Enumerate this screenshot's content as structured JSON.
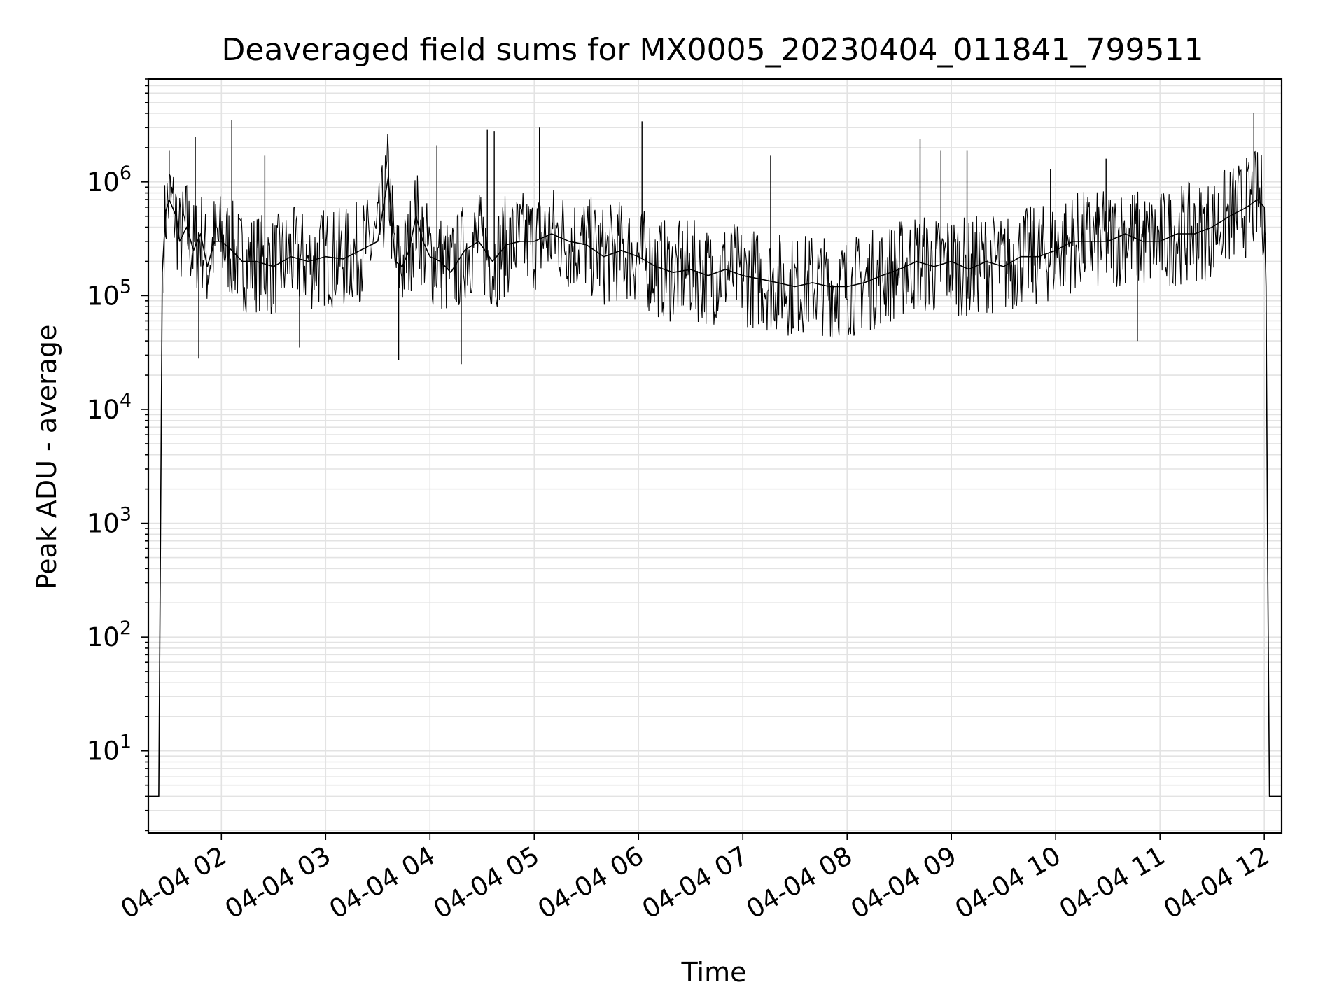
{
  "chart_data": {
    "type": "line",
    "title": "Deaveraged field sums for MX0005_20230404_011841_799511",
    "xlabel": "Time",
    "ylabel": "Peak ADU - average",
    "yscale": "log",
    "ylim": [
      1.9,
      8000000
    ],
    "xlim": [
      "04-04 01:18",
      "04-04 12:10"
    ],
    "grid": true,
    "line_color": "#000000",
    "x_ticks": [
      "04-04 02",
      "04-04 03",
      "04-04 04",
      "04-04 05",
      "04-04 06",
      "04-04 07",
      "04-04 08",
      "04-04 09",
      "04-04 10",
      "04-04 11",
      "04-04 12"
    ],
    "y_ticks": [
      {
        "value": 10,
        "base": "10",
        "exp": "1"
      },
      {
        "value": 100,
        "base": "10",
        "exp": "2"
      },
      {
        "value": 1000,
        "base": "10",
        "exp": "3"
      },
      {
        "value": 10000,
        "base": "10",
        "exp": "4"
      },
      {
        "value": 100000,
        "base": "10",
        "exp": "5"
      },
      {
        "value": 1000000,
        "base": "10",
        "exp": "6"
      }
    ],
    "series": [
      {
        "x": [
          "04-04 01:18",
          "04-04 01:24",
          "04-04 01:25",
          "04-04 01:26",
          "04-04 01:28",
          "04-04 01:30",
          "04-04 01:34",
          "04-04 01:36",
          "04-04 01:40",
          "04-04 01:44",
          "04-04 01:48",
          "04-04 01:52",
          "04-04 01:56",
          "04-04 02:00",
          "04-04 02:06",
          "04-04 02:12",
          "04-04 02:20",
          "04-04 02:30",
          "04-04 02:40",
          "04-04 02:50",
          "04-04 03:00",
          "04-04 03:10",
          "04-04 03:20",
          "04-04 03:30",
          "04-04 03:36",
          "04-04 03:40",
          "04-04 03:44",
          "04-04 03:48",
          "04-04 03:52",
          "04-04 03:56",
          "04-04 04:00",
          "04-04 04:06",
          "04-04 04:12",
          "04-04 04:20",
          "04-04 04:28",
          "04-04 04:36",
          "04-04 04:44",
          "04-04 04:52",
          "04-04 05:00",
          "04-04 05:10",
          "04-04 05:20",
          "04-04 05:30",
          "04-04 05:40",
          "04-04 05:50",
          "04-04 06:00",
          "04-04 06:10",
          "04-04 06:20",
          "04-04 06:30",
          "04-04 06:40",
          "04-04 06:50",
          "04-04 07:00",
          "04-04 07:10",
          "04-04 07:20",
          "04-04 07:30",
          "04-04 07:40",
          "04-04 07:50",
          "04-04 08:00",
          "04-04 08:10",
          "04-04 08:20",
          "04-04 08:30",
          "04-04 08:40",
          "04-04 08:50",
          "04-04 09:00",
          "04-04 09:10",
          "04-04 09:20",
          "04-04 09:30",
          "04-04 09:40",
          "04-04 09:50",
          "04-04 10:00",
          "04-04 10:10",
          "04-04 10:20",
          "04-04 10:30",
          "04-04 10:40",
          "04-04 10:50",
          "04-04 11:00",
          "04-04 11:10",
          "04-04 11:20",
          "04-04 11:30",
          "04-04 11:40",
          "04-04 11:50",
          "04-04 11:56",
          "04-04 12:00",
          "04-04 12:01",
          "04-04 12:02",
          "04-04 12:03",
          "04-04 12:10"
        ],
        "y": [
          4,
          4,
          800,
          160000,
          550000,
          700000,
          500000,
          300000,
          400000,
          250000,
          350000,
          180000,
          300000,
          300000,
          250000,
          200000,
          200000,
          180000,
          220000,
          200000,
          220000,
          210000,
          250000,
          300000,
          1100000,
          200000,
          180000,
          250000,
          500000,
          300000,
          220000,
          200000,
          160000,
          250000,
          300000,
          200000,
          280000,
          300000,
          300000,
          350000,
          300000,
          280000,
          220000,
          250000,
          220000,
          180000,
          160000,
          170000,
          150000,
          170000,
          150000,
          140000,
          130000,
          120000,
          130000,
          120000,
          120000,
          130000,
          150000,
          170000,
          200000,
          180000,
          200000,
          170000,
          200000,
          180000,
          220000,
          220000,
          250000,
          300000,
          300000,
          300000,
          350000,
          300000,
          300000,
          350000,
          350000,
          400000,
          500000,
          600000,
          700000,
          600000,
          120000,
          400,
          4,
          4
        ]
      }
    ],
    "spikes": [
      {
        "x": "04-04 01:30",
        "y": 1900000
      },
      {
        "x": "04-04 01:45",
        "y": 2500000
      },
      {
        "x": "04-04 01:47",
        "y": 28000
      },
      {
        "x": "04-04 02:06",
        "y": 3500000
      },
      {
        "x": "04-04 02:25",
        "y": 1700000
      },
      {
        "x": "04-04 02:45",
        "y": 35000
      },
      {
        "x": "04-04 03:42",
        "y": 27000
      },
      {
        "x": "04-04 04:04",
        "y": 2100000
      },
      {
        "x": "04-04 04:18",
        "y": 25000
      },
      {
        "x": "04-04 04:33",
        "y": 2900000
      },
      {
        "x": "04-04 04:37",
        "y": 2800000
      },
      {
        "x": "04-04 05:03",
        "y": 3000000
      },
      {
        "x": "04-04 06:02",
        "y": 3400000
      },
      {
        "x": "04-04 07:16",
        "y": 1700000
      },
      {
        "x": "04-04 08:42",
        "y": 2400000
      },
      {
        "x": "04-04 08:54",
        "y": 1900000
      },
      {
        "x": "04-04 09:09",
        "y": 1900000
      },
      {
        "x": "04-04 09:57",
        "y": 1300000
      },
      {
        "x": "04-04 10:29",
        "y": 1600000
      },
      {
        "x": "04-04 10:47",
        "y": 40000
      },
      {
        "x": "04-04 11:54",
        "y": 4000000
      }
    ]
  }
}
